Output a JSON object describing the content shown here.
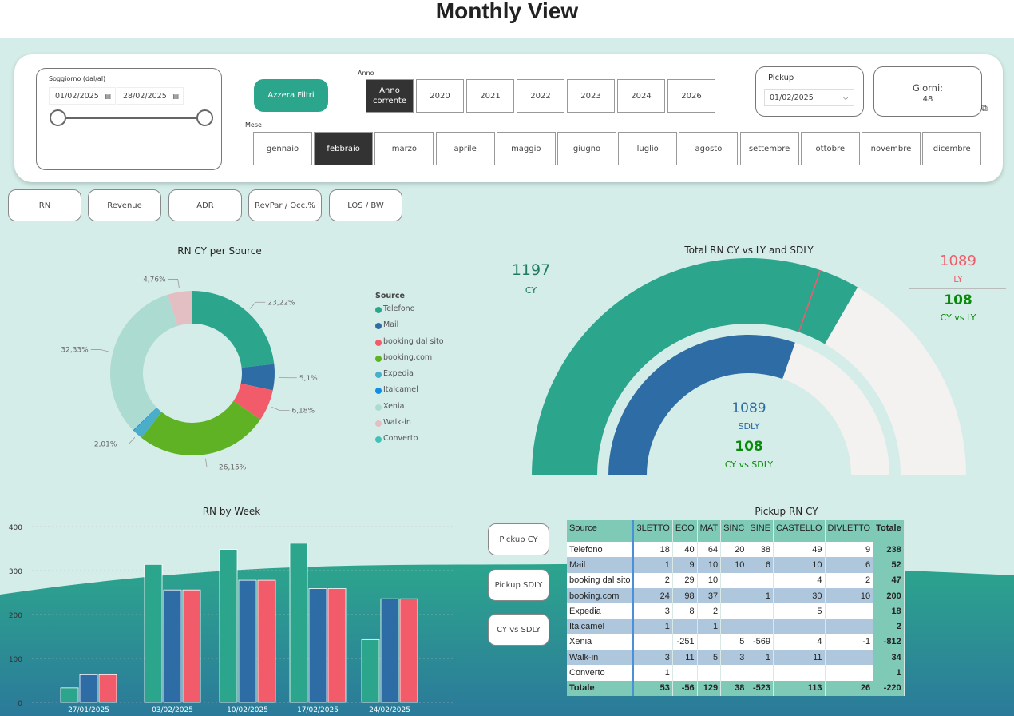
{
  "header": {
    "title": "Monthly View"
  },
  "colors": {
    "cy": "#2ca58d",
    "sdly": "#2d6ca5",
    "ly": "#f25c6a",
    "accent": "#2ca58d",
    "bg": "#d4ede8"
  },
  "filters": {
    "stay_label": "Soggiorno (dal/al)",
    "date_from": "01/02/2025",
    "date_to": "28/02/2025",
    "reset_label": "Azzera Filtri",
    "year_label": "Anno",
    "years": [
      {
        "label": "Anno corrente",
        "selected": true
      },
      {
        "label": "2020"
      },
      {
        "label": "2021"
      },
      {
        "label": "2022"
      },
      {
        "label": "2023"
      },
      {
        "label": "2024"
      },
      {
        "label": "2026"
      }
    ],
    "month_label": "Mese",
    "months": [
      {
        "label": "gennaio"
      },
      {
        "label": "febbraio",
        "selected": true
      },
      {
        "label": "marzo"
      },
      {
        "label": "aprile"
      },
      {
        "label": "maggio"
      },
      {
        "label": "giugno"
      },
      {
        "label": "luglio"
      },
      {
        "label": "agosto"
      },
      {
        "label": "settembre"
      },
      {
        "label": "ottobre"
      },
      {
        "label": "novembre"
      },
      {
        "label": "dicembre"
      }
    ],
    "pickup_label": "Pickup",
    "pickup_value": "01/02/2025",
    "days_label": "Giorni:",
    "days_value": "48"
  },
  "metric_buttons": [
    "RN",
    "Revenue",
    "ADR",
    "RevPar / Occ.%",
    "LOS / BW"
  ],
  "pickup_buttons": [
    "Pickup CY",
    "Pickup SDLY",
    "CY vs SDLY"
  ],
  "chart_data": [
    {
      "type": "pie",
      "title": "RN CY per Source",
      "legend_title": "Source",
      "legend_position": "right",
      "slices": [
        {
          "name": "Telefono",
          "value": 23.22,
          "label": "23,22%",
          "color": "#2ca58d"
        },
        {
          "name": "Mail",
          "value": 5.1,
          "label": "5,1%",
          "color": "#2d6ca5"
        },
        {
          "name": "booking dal sito",
          "value": 6.18,
          "label": "6,18%",
          "color": "#f25c6a"
        },
        {
          "name": "booking.com",
          "value": 26.15,
          "label": "26,15%",
          "color": "#5fb224"
        },
        {
          "name": "Expedia",
          "value": 2.01,
          "label": "2,01%",
          "color": "#4aaec9"
        },
        {
          "name": "Italcamel",
          "value": 0.17,
          "label": "",
          "color": "#118de3"
        },
        {
          "name": "Xenia",
          "value": 32.33,
          "label": "32,33%",
          "color": "#acdbd1"
        },
        {
          "name": "Walk-in",
          "value": 4.76,
          "label": "4,76%",
          "color": "#e3bfc3"
        },
        {
          "name": "Converto",
          "value": 0.08,
          "label": "",
          "color": "#3fc3b8"
        }
      ]
    },
    {
      "type": "gauge",
      "title": "Total RN CY vs LY and SDLY",
      "max": 1795,
      "cy": {
        "value": "1197",
        "label": "CY"
      },
      "ly": {
        "value": "1089",
        "label": "LY",
        "diff": "108",
        "diff_label": "CY vs LY"
      },
      "sdly": {
        "value": "1089",
        "label": "SDLY",
        "diff": "108",
        "diff_label": "CY vs SDLY"
      }
    },
    {
      "type": "bar",
      "title": "RN by Week",
      "ylim": [
        0,
        400
      ],
      "yticks": [
        "0",
        "100",
        "200",
        "300",
        "400"
      ],
      "grid": true,
      "categories": [
        "27/01/2025",
        "03/02/2025",
        "10/02/2025",
        "17/02/2025",
        "24/02/2025"
      ],
      "series": [
        {
          "values": [
            33,
            314,
            348,
            362,
            143
          ],
          "color": "#2ca58d"
        },
        {
          "values": [
            63,
            256,
            278,
            259,
            236
          ],
          "color": "#2d6ca5"
        },
        {
          "values": [
            63,
            256,
            278,
            259,
            236
          ],
          "color": "#f25c6a"
        }
      ]
    },
    {
      "type": "table",
      "title": "Pickup RN CY",
      "columns": [
        "Source",
        "3LETTO",
        "ECO",
        "MAT",
        "SINC",
        "SINE",
        "CASTELLO",
        "DIVLETTO",
        "Totale"
      ],
      "rows": [
        [
          "Telefono",
          "18",
          "40",
          "64",
          "20",
          "38",
          "49",
          "9",
          "238"
        ],
        [
          "Mail",
          "1",
          "9",
          "10",
          "10",
          "6",
          "10",
          "6",
          "52"
        ],
        [
          "booking dal sito",
          "2",
          "29",
          "10",
          "",
          "",
          "4",
          "2",
          "47"
        ],
        [
          "booking.com",
          "24",
          "98",
          "37",
          "",
          "1",
          "30",
          "10",
          "200"
        ],
        [
          "Expedia",
          "3",
          "8",
          "2",
          "",
          "",
          "5",
          "",
          "18"
        ],
        [
          "Italcamel",
          "1",
          "",
          "1",
          "",
          "",
          "",
          "",
          "2"
        ],
        [
          "Xenia",
          "",
          "-251",
          "",
          "5",
          "-569",
          "4",
          "-1",
          "-812"
        ],
        [
          "Walk-in",
          "3",
          "11",
          "5",
          "3",
          "1",
          "11",
          "",
          "34"
        ],
        [
          "Converto",
          "1",
          "",
          "",
          "",
          "",
          "",
          "",
          "1"
        ]
      ],
      "totals": [
        "Totale",
        "53",
        "-56",
        "129",
        "38",
        "-523",
        "113",
        "26",
        "-220"
      ]
    }
  ]
}
